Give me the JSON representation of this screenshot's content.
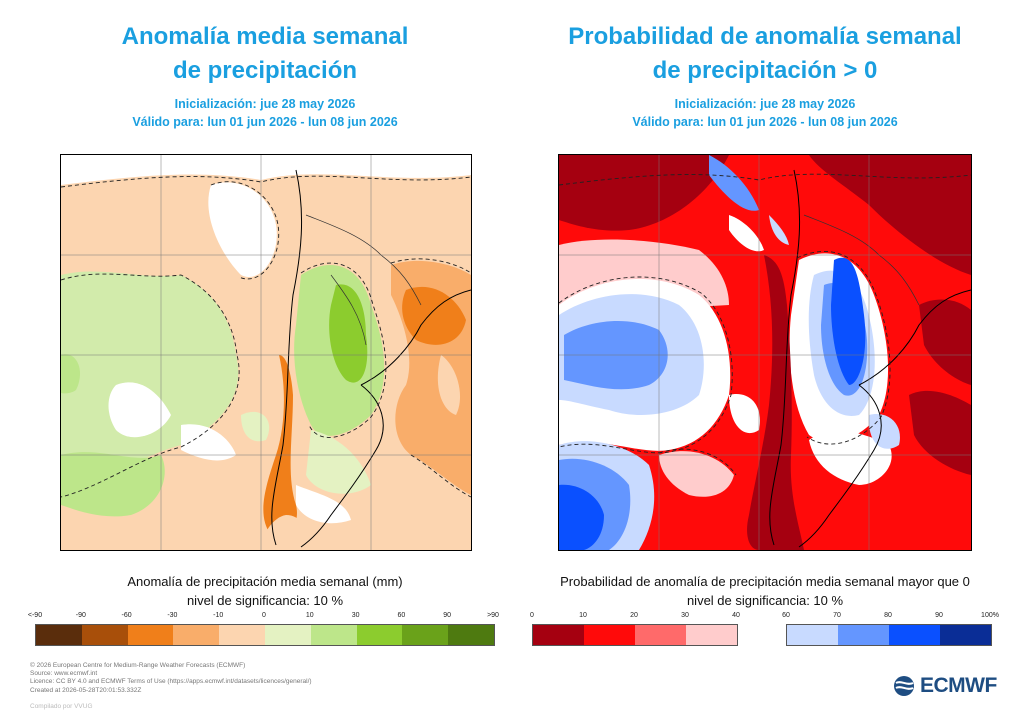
{
  "left": {
    "title_line1": "Anomalía media semanal",
    "title_line2": "de precipitación",
    "init": "Inicialización: jue 28 may 2026",
    "valid": "Válido para: lun 01 jun 2026 - lun 08 jun 2026",
    "caption": "Anomalía de precipitación media semanal (mm)",
    "significance": "nivel de significancia: 10 %",
    "ticks": [
      "<-90",
      "-90",
      "-60",
      "-30",
      "-10",
      "0",
      "10",
      "30",
      "60",
      "90",
      ">90"
    ],
    "colors": [
      "#5a2d0c",
      "#a84f0a",
      "#f07f1a",
      "#f9ad6a",
      "#fcd5b0",
      "#e4f2c2",
      "#bde68a",
      "#8ccc2e",
      "#6aa21a",
      "#4e7a10"
    ]
  },
  "right": {
    "title_line1": "Probabilidad de anomalía semanal",
    "title_line2": "de precipitación > 0",
    "init": "Inicialización: jue 28 may 2026",
    "valid": "Válido para: lun 01 jun 2026 - lun 08 jun 2026",
    "caption": "Probabilidad de anomalía de precipitación media semanal mayor que 0",
    "significance": "nivel de significancia: 10 %",
    "ticks_low": [
      "0",
      "10",
      "20",
      "30",
      "40"
    ],
    "ticks_high": [
      "60",
      "70",
      "80",
      "90",
      "100%"
    ],
    "colors_low": [
      "#a50010",
      "#ff0a0a",
      "#ff6a6a",
      "#ffcccc"
    ],
    "colors_high": [
      "#c8daff",
      "#6496ff",
      "#0a50ff",
      "#0a2d96"
    ]
  },
  "credits": [
    "© 2026 European Centre for Medium-Range Weather Forecasts (ECMWF)",
    "Source: www.ecmwf.int",
    "Licence: CC BY 4.0 and ECMWF Terms of Use (https://apps.ecmwf.int/datasets/licences/general/)",
    "Created at 2026-05-28T20:01:53.332Z"
  ],
  "logo_text": "ECMWF",
  "footnote": "Compilado por VVUG",
  "colors": {
    "title": "#1a9fe0",
    "logo": "#1e4d82"
  }
}
